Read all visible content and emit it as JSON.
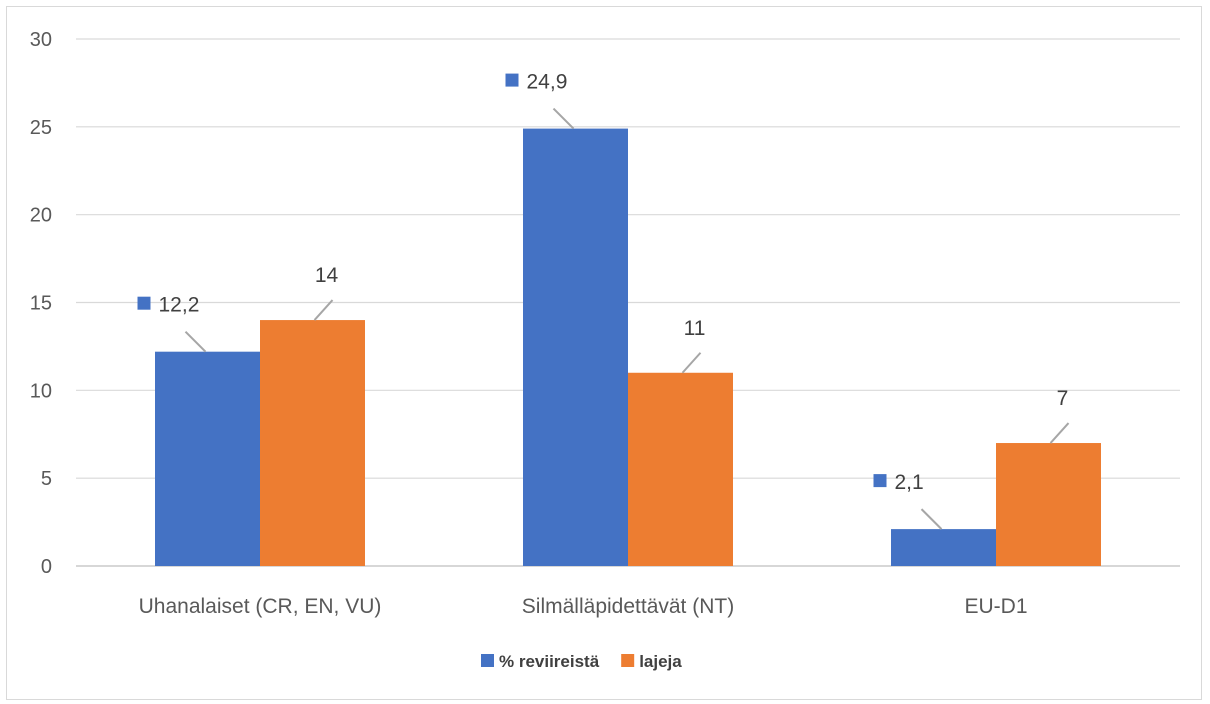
{
  "chart_data": {
    "type": "bar",
    "categories": [
      "Uhanalaiset (CR, EN, VU)",
      "Silmälläpidettävät (NT)",
      "EU-D1"
    ],
    "series": [
      {
        "name": "% reviireistä",
        "values": [
          12.2,
          24.9,
          2.1
        ],
        "labels": [
          "12,2",
          "24,9",
          "2,1"
        ],
        "color": "#4472c4"
      },
      {
        "name": "lajeja",
        "values": [
          14,
          11,
          7
        ],
        "labels": [
          "14",
          "11",
          "7"
        ],
        "color": "#ed7d31"
      }
    ],
    "ylim": [
      0,
      30
    ],
    "yticks": [
      0,
      5,
      10,
      15,
      20,
      25,
      30
    ],
    "grid": true,
    "legend": "bottom",
    "title": "",
    "xlabel": "",
    "ylabel": ""
  }
}
